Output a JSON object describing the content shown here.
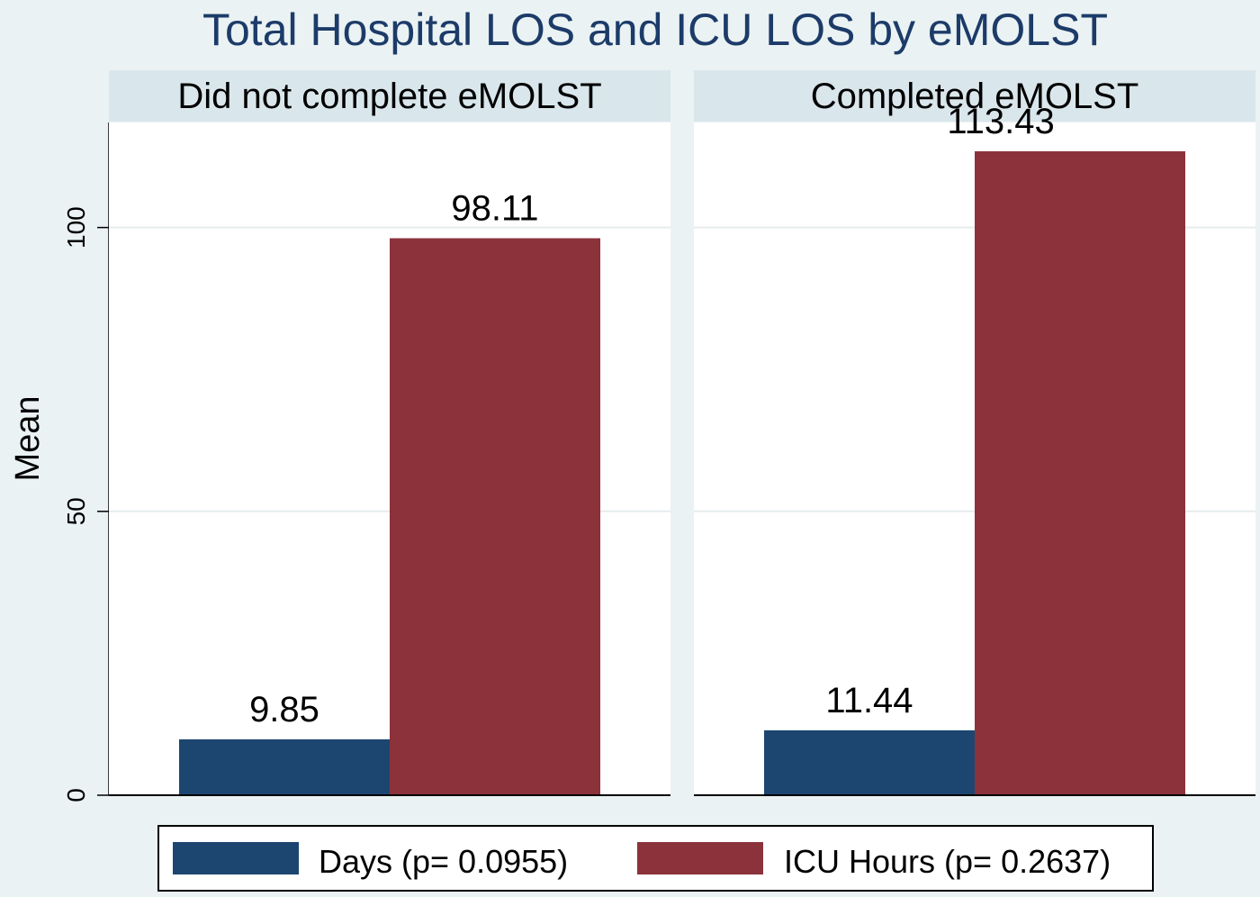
{
  "chart_data": {
    "type": "bar",
    "title": "Total Hospital LOS and ICU LOS by eMOLST",
    "ylabel": "Mean",
    "ylim": [
      0,
      118.5
    ],
    "yticks": [
      0,
      50,
      100
    ],
    "grid": true,
    "panels": [
      {
        "label": "Did not complete eMOLST",
        "values": [
          9.85,
          98.11
        ],
        "value_labels": [
          "9.85",
          "98.11"
        ]
      },
      {
        "label": "Completed eMOLST",
        "values": [
          11.44,
          113.43
        ],
        "value_labels": [
          "11.44",
          "113.43"
        ]
      }
    ],
    "series": [
      {
        "name": "Days (p= 0.0955)",
        "color": "#1c4670"
      },
      {
        "name": "ICU Hours (p= 0.2637)",
        "color": "#8b323b"
      }
    ],
    "legend_position": "bottom"
  }
}
